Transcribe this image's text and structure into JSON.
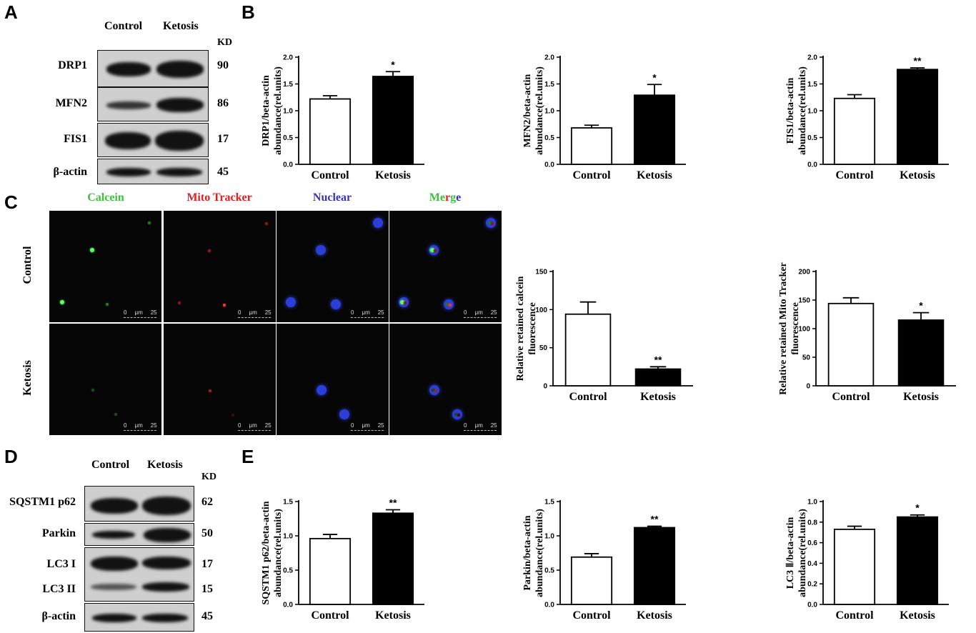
{
  "panels": {
    "a": "A",
    "b": "B",
    "c": "C",
    "d": "D",
    "e": "E"
  },
  "blot_a": {
    "columns": [
      "Control",
      "Ketosis"
    ],
    "kd_header": "KD",
    "rows": [
      {
        "label": "DRP1",
        "kd": "90"
      },
      {
        "label": "MFN2",
        "kd": "86"
      },
      {
        "label": "FIS1",
        "kd": "17"
      },
      {
        "label": "β-actin",
        "kd": "45"
      }
    ]
  },
  "blot_d": {
    "columns": [
      "Control",
      "Ketosis"
    ],
    "kd_header": "KD",
    "rows": [
      {
        "label": "SQSTM1 p62",
        "kd": "62"
      },
      {
        "label": "Parkin",
        "kd": "50"
      },
      {
        "label": "LC3 I",
        "kd": "17"
      },
      {
        "label": "LC3 II",
        "kd": "15"
      },
      {
        "label": "β-actin",
        "kd": "45"
      }
    ]
  },
  "microscopy": {
    "channels": [
      {
        "label": "Calcein",
        "color": "#3fbf3f"
      },
      {
        "label": "Mito Tracker",
        "color": "#e02020"
      },
      {
        "label": "Nuclear",
        "color": "#3333bb"
      }
    ],
    "merge": {
      "m": "M",
      "e": "e",
      "r": "r",
      "g": "g",
      "e2": "e"
    },
    "merge_colors": {
      "m": "#3fbf3f",
      "e": "#3fbf3f",
      "r": "#e02020",
      "g": "#3fbf3f",
      "e2": "#3333bb"
    },
    "rows": [
      "Control",
      "Ketosis"
    ],
    "scale": {
      "zero": "0",
      "unit": "μm",
      "end": "25"
    }
  },
  "chart_data": [
    {
      "type": "bar",
      "categories": [
        "Control",
        "Ketosis"
      ],
      "values": [
        1.22,
        1.64
      ],
      "errors": [
        0.06,
        0.09
      ],
      "ylabel_lines": [
        "DRP1/beta-actin",
        "abundance(rel.units)"
      ],
      "ylim": [
        0,
        2.0
      ],
      "yticks": [
        "0.0",
        "0.5",
        "1.0",
        "1.5",
        "2.0"
      ],
      "significance": [
        "",
        "*"
      ]
    },
    {
      "type": "bar",
      "categories": [
        "Control",
        "Ketosis"
      ],
      "values": [
        0.68,
        1.29
      ],
      "errors": [
        0.05,
        0.2
      ],
      "ylabel_lines": [
        "MFN2/beta-actin",
        "abundance(rel.units)"
      ],
      "ylim": [
        0,
        2.0
      ],
      "yticks": [
        "0.0",
        "0.5",
        "1.0",
        "1.5",
        "2.0"
      ],
      "significance": [
        "",
        "*"
      ]
    },
    {
      "type": "bar",
      "categories": [
        "Control",
        "Ketosis"
      ],
      "values": [
        1.23,
        1.77
      ],
      "errors": [
        0.07,
        0.03
      ],
      "ylabel_lines": [
        "FIS1/beta-actin",
        "abundance(rel.units)"
      ],
      "ylim": [
        0,
        2.0
      ],
      "yticks": [
        "0.0",
        "0.5",
        "1.0",
        "1.5",
        "2.0"
      ],
      "significance": [
        "",
        "**"
      ]
    },
    {
      "type": "bar",
      "categories": [
        "Control",
        "Ketosis"
      ],
      "values": [
        94,
        22
      ],
      "errors": [
        16,
        3
      ],
      "ylabel_lines": [
        "Relative retained calcein",
        "fluorescence"
      ],
      "ylim": [
        0,
        150
      ],
      "yticks": [
        "0",
        "50",
        "100",
        "150"
      ],
      "significance": [
        "",
        "**"
      ]
    },
    {
      "type": "bar",
      "categories": [
        "Control",
        "Ketosis"
      ],
      "values": [
        144,
        115
      ],
      "errors": [
        10,
        13
      ],
      "ylabel_lines": [
        "Relative retained Mito Tracker",
        "fluorescence"
      ],
      "ylim": [
        0,
        200
      ],
      "yticks": [
        "0",
        "50",
        "100",
        "150",
        "200"
      ],
      "significance": [
        "",
        "*"
      ]
    },
    {
      "type": "bar",
      "categories": [
        "Control",
        "Ketosis"
      ],
      "values": [
        0.96,
        1.33
      ],
      "errors": [
        0.06,
        0.05
      ],
      "ylabel_lines": [
        "SQSTM1 p62/beta-actin",
        "abundance(rel.units)"
      ],
      "ylim": [
        0,
        1.5
      ],
      "yticks": [
        "0.0",
        "0.5",
        "1.0",
        "1.5"
      ],
      "significance": [
        "",
        "**"
      ]
    },
    {
      "type": "bar",
      "categories": [
        "Control",
        "Ketosis"
      ],
      "values": [
        0.69,
        1.12
      ],
      "errors": [
        0.05,
        0.02
      ],
      "ylabel_lines": [
        "Parkin/beta-actin",
        "abundance(rel.units)"
      ],
      "ylim": [
        0,
        1.5
      ],
      "yticks": [
        "0.0",
        "0.5",
        "1.0",
        "1.5"
      ],
      "significance": [
        "",
        "**"
      ]
    },
    {
      "type": "bar",
      "categories": [
        "Control",
        "Ketosis"
      ],
      "values": [
        0.73,
        0.85
      ],
      "errors": [
        0.03,
        0.02
      ],
      "ylabel_lines": [
        "LC3 Ⅱ/beta-actin",
        "abundance(rel.units)"
      ],
      "ylim": [
        0,
        1.0
      ],
      "yticks": [
        "0.0",
        "0.2",
        "0.4",
        "0.6",
        "0.8",
        "1.0"
      ],
      "significance": [
        "",
        "*"
      ]
    }
  ]
}
